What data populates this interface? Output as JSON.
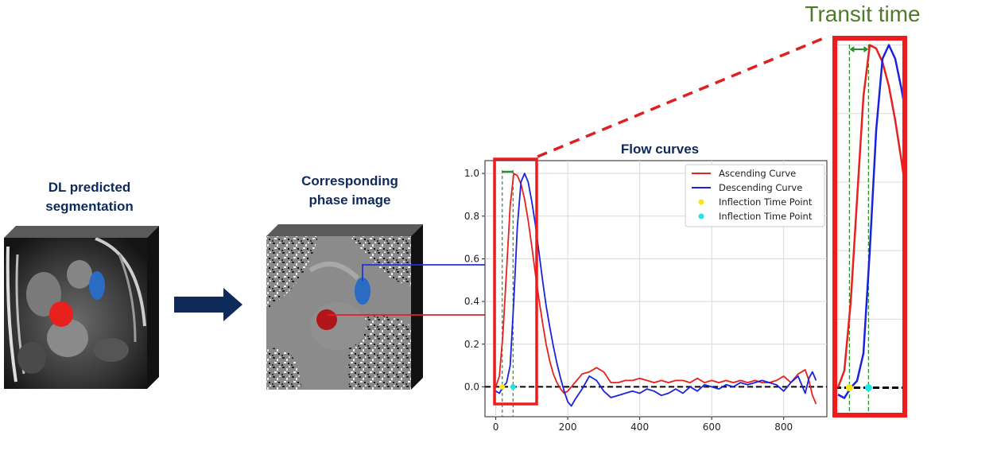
{
  "left_panel": {
    "title_line1": "DL predicted",
    "title_line2": "segmentation"
  },
  "middle_panel": {
    "title_line1": "Corresponding",
    "title_line2": "phase image"
  },
  "zoom": {
    "title": "Transit time"
  },
  "colors": {
    "ascending": "#e8201e",
    "descending": "#1a22e0",
    "highlight": "#ee1c1c",
    "transit": "#2e8b2e",
    "title_navy": "#0e2a5a",
    "transit_text": "#4f7a2a"
  },
  "chart_data": {
    "type": "line",
    "title": "Flow curves",
    "xlim": [
      -30,
      920
    ],
    "ylim": [
      -0.14,
      1.06
    ],
    "xticks": [
      0,
      200,
      400,
      600,
      800
    ],
    "yticks": [
      0.0,
      0.2,
      0.4,
      0.6,
      0.8,
      1.0
    ],
    "xtick_labels": [
      "0",
      "200",
      "400",
      "600",
      "800"
    ],
    "ytick_labels": [
      "0.0",
      "0.2",
      "0.4",
      "0.6",
      "0.8",
      "1.0"
    ],
    "grid": true,
    "legend_position": "top-right",
    "series": [
      {
        "name": "Ascending Curve",
        "color": "#e8201e",
        "x": [
          0,
          10,
          20,
          30,
          40,
          50,
          60,
          70,
          80,
          90,
          100,
          110,
          120,
          130,
          140,
          150,
          160,
          170,
          180,
          190,
          200,
          220,
          240,
          260,
          280,
          300,
          320,
          340,
          360,
          380,
          400,
          420,
          440,
          460,
          480,
          500,
          520,
          540,
          560,
          580,
          600,
          620,
          640,
          660,
          680,
          700,
          720,
          740,
          760,
          780,
          800,
          820,
          840,
          860,
          870,
          880,
          890
        ],
        "y": [
          0.0,
          0.05,
          0.25,
          0.55,
          0.85,
          1.0,
          0.99,
          0.95,
          0.88,
          0.78,
          0.66,
          0.53,
          0.41,
          0.3,
          0.2,
          0.12,
          0.06,
          0.02,
          -0.01,
          -0.03,
          -0.02,
          0.02,
          0.06,
          0.07,
          0.09,
          0.07,
          0.02,
          0.02,
          0.03,
          0.03,
          0.04,
          0.03,
          0.02,
          0.03,
          0.02,
          0.03,
          0.03,
          0.02,
          0.04,
          0.02,
          0.03,
          0.02,
          0.03,
          0.02,
          0.03,
          0.02,
          0.03,
          0.02,
          0.02,
          0.03,
          0.05,
          0.02,
          0.06,
          0.08,
          0.03,
          -0.04,
          -0.08
        ]
      },
      {
        "name": "Descending Curve",
        "color": "#1a22e0",
        "x": [
          0,
          10,
          20,
          30,
          40,
          50,
          60,
          70,
          80,
          90,
          100,
          110,
          120,
          130,
          140,
          150,
          160,
          170,
          180,
          190,
          200,
          210,
          220,
          240,
          260,
          280,
          300,
          320,
          340,
          360,
          380,
          400,
          420,
          440,
          460,
          480,
          500,
          520,
          540,
          560,
          580,
          600,
          620,
          640,
          660,
          680,
          700,
          720,
          740,
          760,
          780,
          800,
          820,
          840,
          860,
          870,
          880,
          890
        ],
        "y": [
          -0.02,
          -0.03,
          0.0,
          0.02,
          0.1,
          0.4,
          0.75,
          0.96,
          1.0,
          0.96,
          0.87,
          0.76,
          0.63,
          0.5,
          0.38,
          0.28,
          0.19,
          0.11,
          0.04,
          -0.02,
          -0.07,
          -0.09,
          -0.06,
          -0.01,
          0.05,
          0.03,
          -0.02,
          -0.05,
          -0.04,
          -0.03,
          -0.02,
          -0.03,
          -0.01,
          -0.02,
          -0.04,
          -0.03,
          -0.01,
          -0.03,
          0.0,
          -0.02,
          0.01,
          0.0,
          -0.01,
          0.01,
          0.0,
          0.02,
          0.01,
          0.02,
          0.03,
          0.02,
          0.01,
          -0.02,
          0.02,
          0.05,
          -0.03,
          0.04,
          0.07,
          0.03
        ]
      },
      {
        "name": "Inflection Time Point",
        "color": "#f5e615",
        "x": [
          18
        ],
        "y": [
          0.0
        ]
      },
      {
        "name": "Inflection Time Point",
        "color": "#22e5e5",
        "x": [
          48
        ],
        "y": [
          0.0
        ]
      }
    ],
    "transit_lines_x": [
      18,
      48
    ]
  }
}
